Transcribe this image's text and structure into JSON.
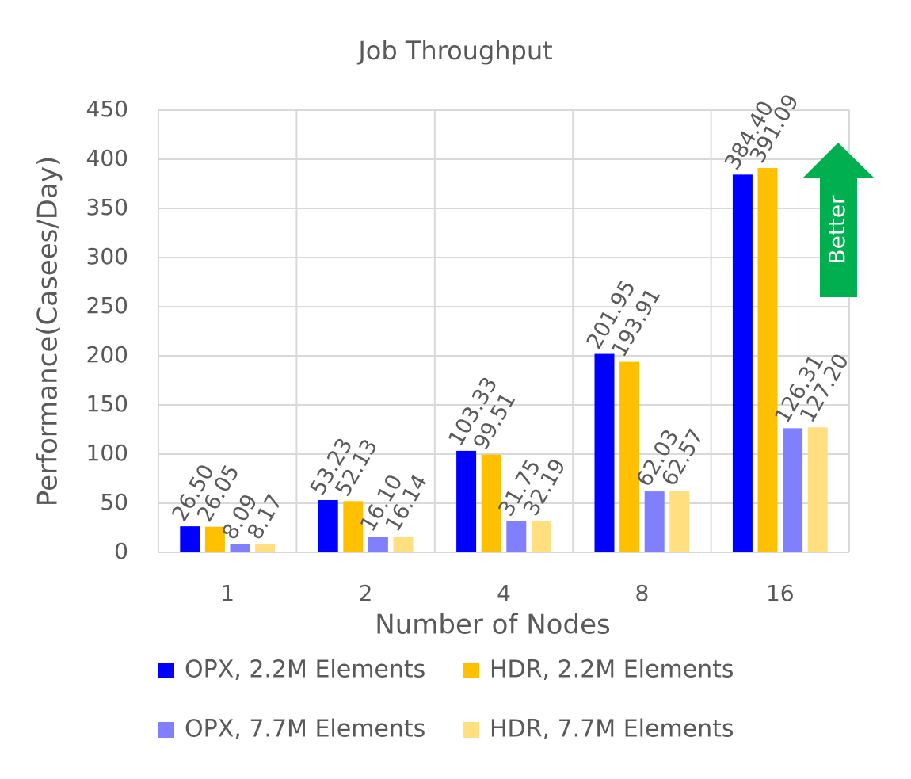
{
  "chart_data": {
    "type": "bar",
    "title": "Job Throughput",
    "x_label": "Number of Nodes",
    "y_label": "Performance(Casees/Day)",
    "categories": [
      "1",
      "2",
      "4",
      "8",
      "16"
    ],
    "series": [
      {
        "name": "OPX, 2.2M Elements",
        "color": "#0000ff",
        "values": [
          26.5,
          53.23,
          103.33,
          201.95,
          384.4
        ],
        "value_labels": [
          "26.50",
          "53.23",
          "103.33",
          "201.95",
          "384.40"
        ]
      },
      {
        "name": "HDR, 2.2M Elements",
        "color": "#ffc000",
        "values": [
          26.05,
          52.13,
          99.51,
          193.91,
          391.09
        ],
        "value_labels": [
          "26.05",
          "52.13",
          "99.51",
          "193.91",
          "391.09"
        ]
      },
      {
        "name": "OPX, 7.7M Elements",
        "color": "#8080ff",
        "values": [
          8.09,
          16.1,
          31.75,
          62.03,
          126.31
        ],
        "value_labels": [
          "8.09",
          "16.10",
          "31.75",
          "62.03",
          "126.31"
        ]
      },
      {
        "name": "HDR, 7.7M Elements",
        "color": "#ffdf80",
        "values": [
          8.17,
          16.14,
          32.19,
          62.57,
          127.2
        ],
        "value_labels": [
          "8.17",
          "16.14",
          "32.19",
          "62.57",
          "127.20"
        ]
      }
    ],
    "ylim": [
      0,
      450
    ],
    "yticks": [
      0,
      50,
      100,
      150,
      200,
      250,
      300,
      350,
      400,
      450
    ],
    "grid": true,
    "legend": "bottom",
    "annotation": "Better",
    "annotation_color": "#00b050"
  }
}
